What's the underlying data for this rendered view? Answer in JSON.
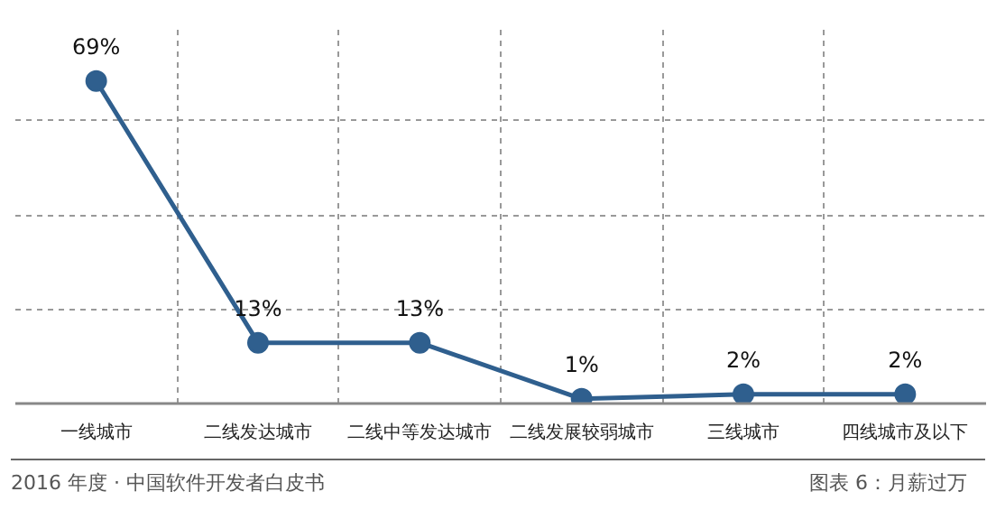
{
  "chart_data": {
    "type": "line",
    "categories": [
      "一线城市",
      "二线发达城市",
      "二线中等发达城市",
      "二线发展较弱城市",
      "三线城市",
      "四线城市及以下"
    ],
    "series": [
      {
        "color": "#2f5f8e",
        "values": [
          69,
          13,
          13,
          1,
          2,
          2
        ],
        "value_labels": [
          "69%",
          "13%",
          "13%",
          "1%",
          "2%",
          "2%"
        ]
      }
    ],
    "tick_labels": "x",
    "grid": true,
    "marker": "circle",
    "line_style": "solid",
    "annotations": [
      "2016 年度 · 中国软件开发者白皮书",
      "图表 6：月薪过万"
    ]
  }
}
